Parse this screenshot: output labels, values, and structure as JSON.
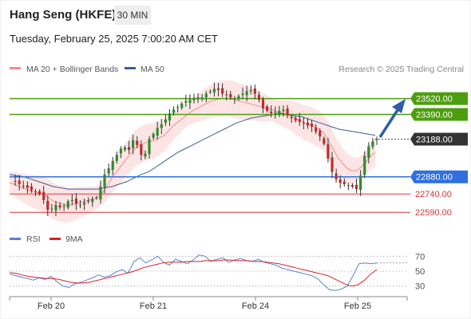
{
  "header": {
    "instrument": "Hang Seng (HKFE)",
    "timeframe": "30 MIN",
    "datetime": "Tuesday, February 25, 2025 7:00:20 AM CET"
  },
  "legend": {
    "ma20": "MA 20 + Bollinger Bands",
    "ma50": "MA 50",
    "copyright": "Research © 2025 Trading Central",
    "colors": {
      "ma20": "#f28b8b",
      "ma50": "#3d5a9e"
    }
  },
  "chart_data": [
    {
      "type": "candlestick",
      "x_ticks": [
        "Feb 20",
        "Feb 21",
        "Feb 24",
        "Feb 25"
      ],
      "ylim": [
        22500,
        23700
      ],
      "last_price": 23188.0,
      "levels": [
        {
          "value": 23520.0,
          "label": "23520.00",
          "kind": "resistance",
          "color": "#4d9e0f"
        },
        {
          "value": 23390.0,
          "label": "23390.00",
          "kind": "resistance",
          "color": "#4d9e0f"
        },
        {
          "value": 23188.0,
          "label": "23188.00",
          "kind": "last",
          "color": "#333333"
        },
        {
          "value": 22880.0,
          "label": "22880.00",
          "kind": "pivot",
          "color": "#2f6fe0"
        },
        {
          "value": 22740.0,
          "label": "22740.00",
          "kind": "support",
          "color": "#d93636"
        },
        {
          "value": 22590.0,
          "label": "22590.00",
          "kind": "support",
          "color": "#d93636"
        }
      ],
      "close_path": [
        22850,
        22840,
        22820,
        22810,
        22790,
        22770,
        22760,
        22740,
        22690,
        22610,
        22620,
        22650,
        22630,
        22640,
        22680,
        22690,
        22660,
        22650,
        22670,
        22680,
        22700,
        22710,
        22800,
        22900,
        22950,
        23010,
        23060,
        23110,
        23120,
        23100,
        23180,
        23140,
        23060,
        23070,
        23190,
        23230,
        23280,
        23310,
        23350,
        23400,
        23430,
        23450,
        23480,
        23500,
        23510,
        23520,
        23530,
        23530,
        23560,
        23580,
        23600,
        23590,
        23560,
        23550,
        23530,
        23520,
        23540,
        23560,
        23580,
        23590,
        23560,
        23510,
        23440,
        23420,
        23400,
        23410,
        23420,
        23430,
        23380,
        23360,
        23340,
        23330,
        23320,
        23300,
        23290,
        23250,
        23210,
        23150,
        23030,
        22920,
        22860,
        22830,
        22820,
        22810,
        22800,
        22780,
        22890,
        23050,
        23130,
        23170,
        23188
      ],
      "ma20_path": [
        22830,
        22820,
        22800,
        22790,
        22770,
        22760,
        22750,
        22740,
        22720,
        22690,
        22670,
        22660,
        22650,
        22650,
        22660,
        22670,
        22680,
        22690,
        22700,
        22720,
        22760,
        22820,
        22880,
        22930,
        22980,
        23030,
        23080,
        23120,
        23140,
        23160,
        23170,
        23180,
        23200,
        23220,
        23260,
        23300,
        23330,
        23360,
        23390,
        23420,
        23440,
        23460,
        23480,
        23500,
        23510,
        23520,
        23520,
        23520,
        23510,
        23500,
        23490,
        23480,
        23470,
        23460,
        23450,
        23440,
        23430,
        23410,
        23400,
        23390,
        23380,
        23360,
        23340,
        23320,
        23310,
        23290,
        23270,
        23240,
        23180,
        23110,
        23040,
        22990,
        22950,
        22930,
        22930,
        22960,
        23000,
        23050,
        23080
      ],
      "ma50_path": [
        22900,
        22890,
        22880,
        22860,
        22840,
        22820,
        22800,
        22790,
        22780,
        22780,
        22780,
        22780,
        22780,
        22790,
        22800,
        22820,
        22840,
        22870,
        22900,
        22920,
        22960,
        23000,
        23040,
        23080,
        23110,
        23140,
        23170,
        23200,
        23230,
        23260,
        23290,
        23320,
        23340,
        23360,
        23370,
        23380,
        23390,
        23400,
        23390,
        23380,
        23370,
        23350,
        23330,
        23310,
        23290,
        23270,
        23260,
        23250,
        23240,
        23230,
        23220
      ]
    },
    {
      "type": "line",
      "title": "",
      "legend": [
        {
          "name": "RSI",
          "color": "#5b7fd6"
        },
        {
          "name": "9MA",
          "color": "#d82222"
        }
      ],
      "ylim": [
        20,
        80
      ],
      "y_ticks": [
        "70",
        "50",
        "30"
      ],
      "series": [
        {
          "name": "RSI",
          "values": [
            46,
            44,
            42,
            40,
            38,
            41,
            39,
            43,
            36,
            30,
            28,
            33,
            35,
            38,
            41,
            45,
            42,
            44,
            49,
            52,
            47,
            63,
            68,
            61,
            65,
            70,
            62,
            58,
            66,
            63,
            60,
            65,
            72,
            70,
            63,
            66,
            68,
            62,
            65,
            67,
            64,
            63,
            66,
            62,
            60,
            58,
            54,
            52,
            50,
            48,
            46,
            44,
            40,
            32,
            25,
            24,
            26,
            30,
            44,
            60,
            61,
            60,
            61
          ]
        },
        {
          "name": "9MA",
          "values": [
            48,
            47,
            45,
            43,
            42,
            41,
            40,
            40,
            39,
            37,
            35,
            34,
            34,
            35,
            37,
            39,
            41,
            43,
            45,
            47,
            49,
            52,
            55,
            57,
            59,
            61,
            62,
            62,
            62,
            63,
            63,
            63,
            64,
            64,
            64,
            65,
            65,
            64,
            64,
            64,
            63,
            63,
            62,
            61,
            60,
            58,
            56,
            54,
            52,
            50,
            48,
            46,
            44,
            40,
            36,
            32,
            30,
            32,
            38,
            46,
            52
          ]
        }
      ]
    }
  ]
}
